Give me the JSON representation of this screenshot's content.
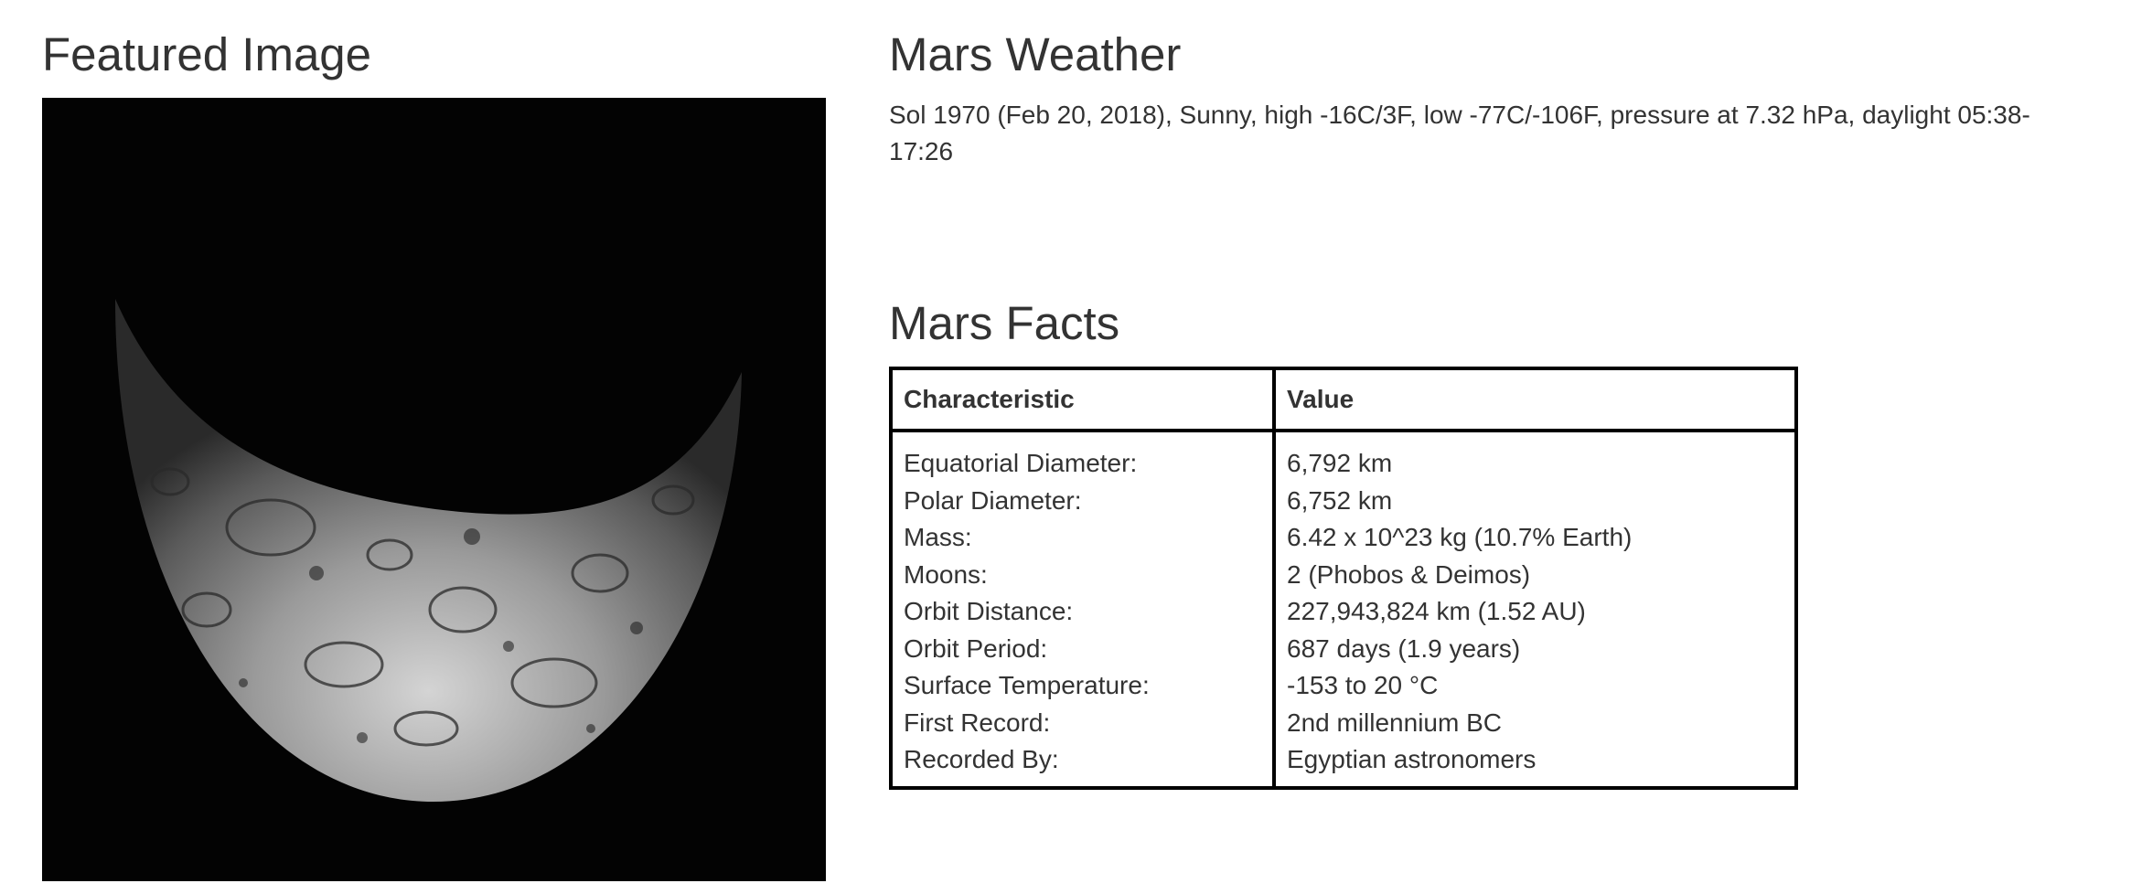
{
  "featured": {
    "title": "Featured Image",
    "image_description": "Grayscale cratered moon/planet crescent against black space"
  },
  "weather": {
    "title": "Mars Weather",
    "text": "Sol 1970 (Feb 20, 2018), Sunny, high -16C/3F, low -77C/-106F, pressure at 7.32 hPa, daylight 05:38-17:26"
  },
  "facts": {
    "title": "Mars Facts",
    "headers": [
      "Characteristic",
      "Value"
    ],
    "rows": [
      [
        "Equatorial Diameter:",
        "6,792 km"
      ],
      [
        "Polar Diameter:",
        "6,752 km"
      ],
      [
        "Mass:",
        "6.42 x 10^23 kg (10.7% Earth)"
      ],
      [
        "Moons:",
        "2 (Phobos & Deimos)"
      ],
      [
        "Orbit Distance:",
        "227,943,824 km (1.52 AU)"
      ],
      [
        "Orbit Period:",
        "687 days (1.9 years)"
      ],
      [
        "Surface Temperature:",
        "-153 to 20 °C"
      ],
      [
        "First Record:",
        "2nd millennium BC"
      ],
      [
        "Recorded By:",
        "Egyptian astronomers"
      ]
    ]
  },
  "colors": {
    "text": "#333333",
    "table_border": "#000000",
    "image_background": "#030303"
  }
}
